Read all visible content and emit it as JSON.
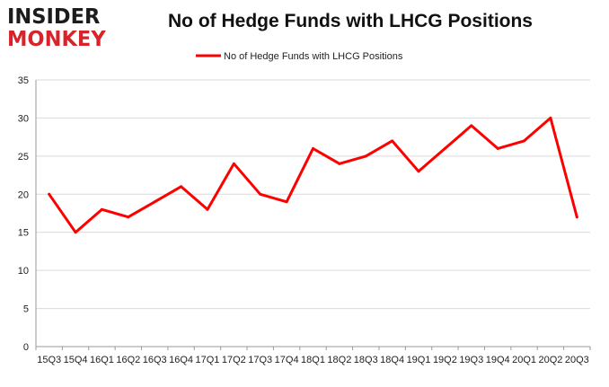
{
  "logo": {
    "line1": "INSIDER",
    "line2": "MONKEY"
  },
  "chart_data": {
    "type": "line",
    "title": "No of Hedge Funds with LHCG Positions",
    "xlabel": "",
    "ylabel": "",
    "categories": [
      "15Q3",
      "15Q4",
      "16Q1",
      "16Q2",
      "16Q3",
      "16Q4",
      "17Q1",
      "17Q2",
      "17Q3",
      "17Q4",
      "18Q1",
      "18Q2",
      "18Q3",
      "18Q4",
      "19Q1",
      "19Q2",
      "19Q3",
      "19Q4",
      "20Q1",
      "20Q2",
      "20Q3"
    ],
    "series": [
      {
        "name": "No of Hedge Funds with LHCG Positions",
        "values": [
          20,
          15,
          18,
          17,
          19,
          21,
          18,
          24,
          20,
          19,
          26,
          24,
          25,
          27,
          23,
          26,
          29,
          26,
          27,
          30,
          17
        ],
        "color": "#ff0000"
      }
    ],
    "ylim": [
      0,
      35
    ],
    "yticks": [
      0,
      5,
      10,
      15,
      20,
      25,
      30,
      35
    ],
    "grid": true,
    "legend": "top-center"
  }
}
